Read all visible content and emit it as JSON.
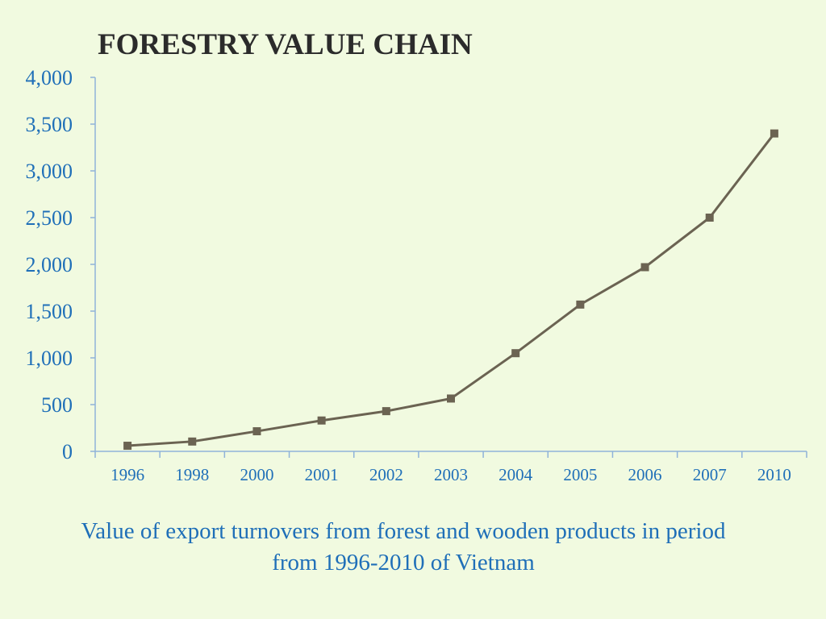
{
  "slide": {
    "title": "FORESTRY VALUE CHAIN",
    "caption_line1": "Value of export turnovers from forest and wooden products in period",
    "caption_line2": "from 1996-2010 of Vietnam"
  },
  "colors": {
    "background": "#f1fae0",
    "tick_text": "#1f6fb8",
    "axis": "#8fb3d9",
    "series": "#6b6352"
  },
  "chart_data": {
    "type": "line",
    "title": "",
    "xlabel": "",
    "ylabel": "",
    "categories": [
      "1996",
      "1998",
      "2000",
      "2001",
      "2002",
      "2003",
      "2004",
      "2005",
      "2006",
      "2007",
      "2010"
    ],
    "series": [
      {
        "values": [
          60,
          105,
          215,
          330,
          430,
          565,
          1050,
          1570,
          1970,
          2500,
          3400
        ]
      }
    ],
    "ylim": [
      0,
      4000
    ],
    "yticks": [
      0,
      500,
      1000,
      1500,
      2000,
      2500,
      3000,
      3500,
      4000
    ],
    "ytick_labels": [
      "0",
      "500",
      "1,000",
      "1,500",
      "2,000",
      "2,500",
      "3,000",
      "3,500",
      "4,000"
    ],
    "grid": false,
    "legend": "none",
    "marker": "square"
  }
}
